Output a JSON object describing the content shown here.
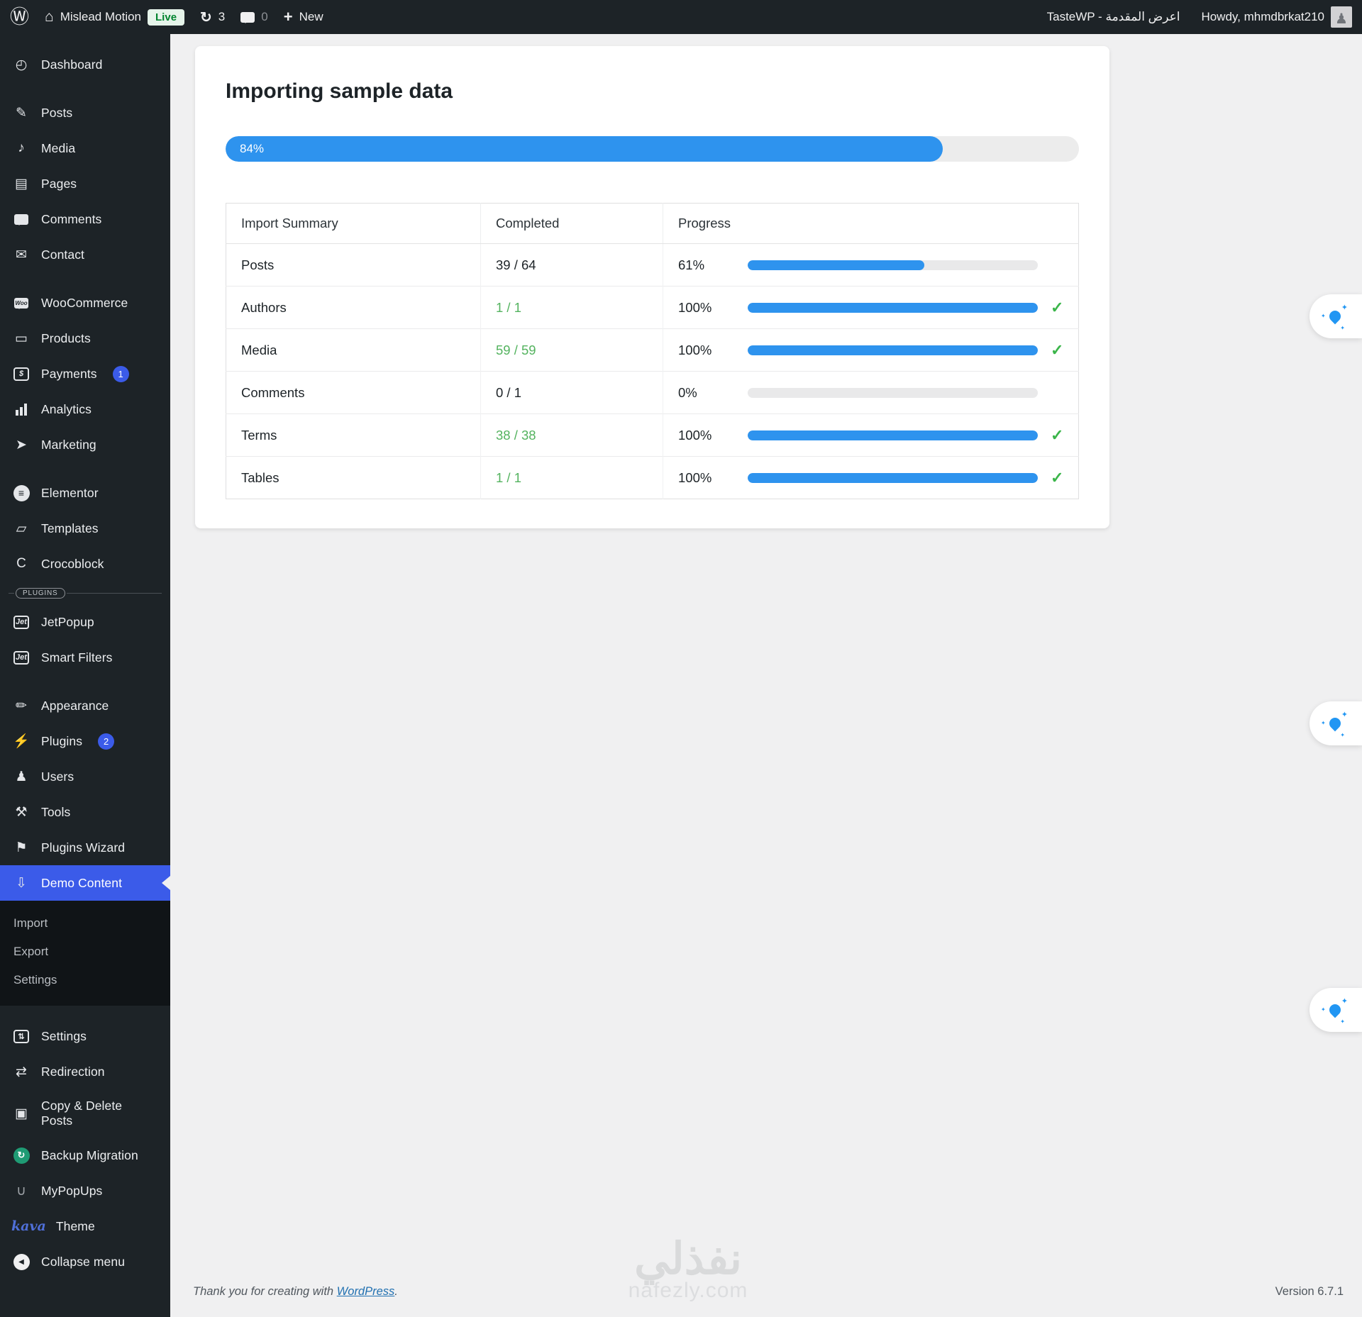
{
  "admin_bar": {
    "site_name": "Mislead Motion",
    "live_badge": "Live",
    "updates_count": "3",
    "comments_count": "0",
    "new_label": "New",
    "tastewp_label": "TasteWP - اعرض المقدمة",
    "howdy": "Howdy, mhmdbrkat210"
  },
  "sidebar": {
    "items": [
      {
        "label": "Dashboard",
        "icon": "dashboard-icon",
        "glyph": "◴"
      },
      {
        "type": "gap"
      },
      {
        "label": "Posts",
        "icon": "pushpin-icon",
        "glyph": "✎"
      },
      {
        "label": "Media",
        "icon": "media-icon",
        "glyph": "♪"
      },
      {
        "label": "Pages",
        "icon": "pages-icon",
        "glyph": "▤"
      },
      {
        "label": "Comments",
        "icon": "comment-bubble-icon",
        "kind": "bubble"
      },
      {
        "label": "Contact",
        "icon": "envelope-icon",
        "glyph": "✉"
      },
      {
        "type": "gap"
      },
      {
        "label": "WooCommerce",
        "icon": "woocommerce-icon",
        "kind": "bubble",
        "bubble_text": "Woo"
      },
      {
        "label": "Products",
        "icon": "products-box-icon",
        "glyph": "▭"
      },
      {
        "label": "Payments",
        "icon": "payments-icon",
        "kind": "boxed",
        "glyph": "$",
        "badge": "1"
      },
      {
        "label": "Analytics",
        "icon": "bar-chart-icon",
        "kind": "bars"
      },
      {
        "label": "Marketing",
        "icon": "megaphone-icon",
        "glyph": "➤"
      },
      {
        "type": "gap"
      },
      {
        "label": "Elementor",
        "icon": "elementor-icon",
        "kind": "circle-light",
        "glyph": "≡"
      },
      {
        "label": "Templates",
        "icon": "folder-icon",
        "glyph": "▱"
      },
      {
        "label": "Crocoblock",
        "icon": "crocoblock-icon",
        "glyph": "C"
      },
      {
        "type": "divider",
        "label": "PLUGINS"
      },
      {
        "label": "JetPopup",
        "icon": "jet-icon",
        "kind": "boxed",
        "glyph": "Jet"
      },
      {
        "label": "Smart Filters",
        "icon": "jet-icon",
        "kind": "boxed",
        "glyph": "Jet"
      },
      {
        "type": "gap"
      },
      {
        "label": "Appearance",
        "icon": "brush-icon",
        "glyph": "✏"
      },
      {
        "label": "Plugins",
        "icon": "plugin-icon",
        "glyph": "⚡",
        "badge": "2"
      },
      {
        "label": "Users",
        "icon": "user-icon",
        "glyph": "♟"
      },
      {
        "label": "Tools",
        "icon": "wrench-icon",
        "glyph": "⚒"
      },
      {
        "label": "Plugins Wizard",
        "icon": "flag-icon",
        "glyph": "⚑"
      },
      {
        "label": "Demo Content",
        "icon": "download-arrow-icon",
        "glyph": "⇩",
        "active": true
      },
      {
        "type": "submenu",
        "items": [
          "Import",
          "Export",
          "Settings"
        ]
      },
      {
        "type": "gap"
      },
      {
        "label": "Settings",
        "icon": "settings-sliders-icon",
        "kind": "boxed-upright",
        "glyph": "⇅"
      },
      {
        "label": "Redirection",
        "icon": "redirect-arrows-icon",
        "glyph": "⇄"
      },
      {
        "label": "Copy & Delete Posts",
        "icon": "copy-pages-icon",
        "glyph": "▣",
        "wrap": true
      },
      {
        "label": "Backup Migration",
        "icon": "backup-migration-icon",
        "kind": "circle-green",
        "glyph": "↻"
      },
      {
        "label": "MyPopUps",
        "icon": "mypopups-icon",
        "glyph": "∪",
        "muted": true
      },
      {
        "label": "Theme",
        "icon": "kava-logo",
        "kind": "kava",
        "glyph": "kava"
      },
      {
        "label": "Collapse menu",
        "icon": "collapse-arrow-icon",
        "kind": "circle-white",
        "glyph": "◀"
      }
    ]
  },
  "main": {
    "title": "Importing sample data",
    "progress": {
      "percent": 84,
      "label": "84%"
    },
    "table": {
      "headers": [
        "Import Summary",
        "Completed",
        "Progress"
      ],
      "rows": [
        {
          "name": "Posts",
          "completed": "39 / 64",
          "completed_green": false,
          "percent": 61,
          "percent_label": "61%",
          "done": false
        },
        {
          "name": "Authors",
          "completed": "1 / 1",
          "completed_green": true,
          "percent": 100,
          "percent_label": "100%",
          "done": true
        },
        {
          "name": "Media",
          "completed": "59 / 59",
          "completed_green": true,
          "percent": 100,
          "percent_label": "100%",
          "done": true
        },
        {
          "name": "Comments",
          "completed": "0 / 1",
          "completed_green": false,
          "percent": 0,
          "percent_label": "0%",
          "done": false
        },
        {
          "name": "Terms",
          "completed": "38 / 38",
          "completed_green": true,
          "percent": 100,
          "percent_label": "100%",
          "done": true
        },
        {
          "name": "Tables",
          "completed": "1 / 1",
          "completed_green": true,
          "percent": 100,
          "percent_label": "100%",
          "done": true
        }
      ],
      "check_glyph": "✓"
    }
  },
  "footer": {
    "thanks_prefix": "Thank you for creating with ",
    "link_text": "WordPress",
    "suffix": ".",
    "version": "Version 6.7.1"
  },
  "watermark": {
    "arabic": "نفذلي",
    "latin": "nafezly.com"
  },
  "colors": {
    "accent_blue": "#2e93ee",
    "active_menu_blue": "#3b5be9",
    "success_green": "#3bb54a",
    "completed_green": "#54b35f",
    "admin_dark": "#1d2327"
  }
}
